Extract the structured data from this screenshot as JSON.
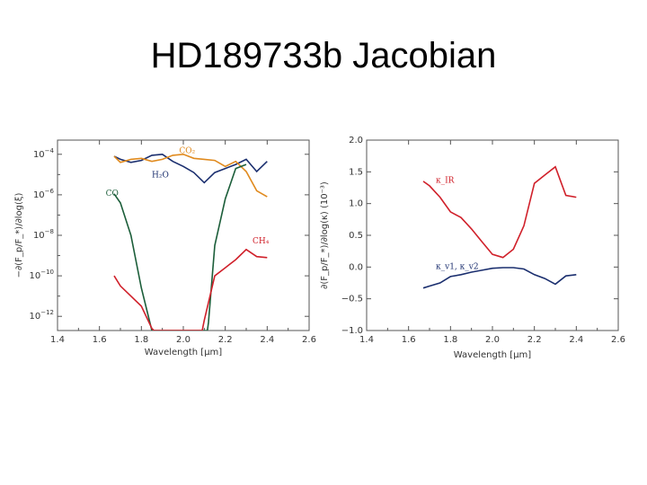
{
  "slide": {
    "title": "HD189733b Jacobian"
  },
  "chart_data": [
    {
      "type": "line",
      "xlabel": "Wavelength [μm]",
      "ylabel": "−∂(F_p/F_*)/∂log(ξ)",
      "xlim": [
        1.4,
        2.6
      ],
      "xticks": [
        "1.4",
        "1.6",
        "1.8",
        "2.0",
        "2.2",
        "2.4",
        "2.6"
      ],
      "y_scale": "log",
      "ylim_exp": [
        -12.7,
        -3.3
      ],
      "yticks": [
        {
          "base": "10",
          "exp": "−4",
          "e": -4
        },
        {
          "base": "10",
          "exp": "−6",
          "e": -6
        },
        {
          "base": "10",
          "exp": "−8",
          "e": -8
        },
        {
          "base": "10",
          "exp": "−10",
          "e": -10
        },
        {
          "base": "10",
          "exp": "−12",
          "e": -12
        }
      ],
      "series": [
        {
          "name": "H₂O",
          "color": "#1a2e6e",
          "label_at": [
            1.85,
            -5.15
          ],
          "x": [
            1.67,
            1.7,
            1.75,
            1.8,
            1.85,
            1.9,
            1.95,
            2.0,
            2.05,
            2.1,
            2.15,
            2.2,
            2.25,
            2.3,
            2.35,
            2.4
          ],
          "y": [
            -4.1,
            -4.25,
            -4.4,
            -4.3,
            -4.05,
            -4.0,
            -4.35,
            -4.6,
            -4.9,
            -5.4,
            -4.9,
            -4.7,
            -4.5,
            -4.25,
            -4.85,
            -4.35
          ]
        },
        {
          "name": "CO₂",
          "color": "#e08a1e",
          "label_at": [
            1.98,
            -3.95
          ],
          "x": [
            1.67,
            1.7,
            1.75,
            1.8,
            1.85,
            1.9,
            1.95,
            2.0,
            2.05,
            2.1,
            2.15,
            2.2,
            2.25,
            2.3,
            2.35,
            2.4
          ],
          "y": [
            -4.1,
            -4.4,
            -4.25,
            -4.2,
            -4.35,
            -4.25,
            -4.05,
            -4.0,
            -4.2,
            -4.25,
            -4.3,
            -4.6,
            -4.35,
            -4.85,
            -5.8,
            -6.1
          ]
        },
        {
          "name": "CO",
          "color": "#1c5e3a",
          "label_at": [
            1.63,
            -6.05
          ],
          "x": [
            1.67,
            1.7,
            1.75,
            1.8,
            1.85,
            1.855,
            2.115,
            2.12,
            2.15,
            2.2,
            2.25,
            2.3
          ],
          "y": [
            -5.95,
            -6.4,
            -8.0,
            -10.6,
            -12.7,
            -12.7,
            -12.7,
            -12.3,
            -8.5,
            -6.2,
            -4.7,
            -4.5
          ]
        },
        {
          "name": "CH₄",
          "color": "#d0202a",
          "label_at": [
            2.33,
            -8.4
          ],
          "x": [
            1.67,
            1.7,
            1.75,
            1.8,
            1.85,
            1.86,
            2.09,
            2.1,
            2.15,
            2.2,
            2.25,
            2.3,
            2.35,
            2.4
          ],
          "y": [
            -10.0,
            -10.5,
            -11.0,
            -11.5,
            -12.6,
            -12.7,
            -12.7,
            -12.2,
            -10.0,
            -9.6,
            -9.2,
            -8.7,
            -9.05,
            -9.1
          ]
        }
      ]
    },
    {
      "type": "line",
      "xlabel": "Wavelength [μm]",
      "ylabel": "∂(F_p/F_*)/∂log(κ) (10⁻³)",
      "xlim": [
        1.4,
        2.6
      ],
      "xticks": [
        "1.4",
        "1.6",
        "1.8",
        "2.0",
        "2.2",
        "2.4",
        "2.6"
      ],
      "ylim": [
        -1.0,
        2.0
      ],
      "yticks": [
        "2.0",
        "1.5",
        "1.0",
        "0.5",
        "0.0",
        "−0.5",
        "−1.0"
      ],
      "series": [
        {
          "name": "κ_IR",
          "color": "#d0202a",
          "label_at": [
            1.73,
            1.33
          ],
          "x": [
            1.67,
            1.7,
            1.75,
            1.8,
            1.85,
            1.9,
            1.95,
            2.0,
            2.05,
            2.1,
            2.15,
            2.2,
            2.25,
            2.3,
            2.35,
            2.4
          ],
          "y": [
            1.35,
            1.28,
            1.1,
            0.87,
            0.78,
            0.6,
            0.4,
            0.2,
            0.15,
            0.28,
            0.65,
            1.32,
            1.45,
            1.58,
            1.13,
            1.1
          ]
        },
        {
          "name": "κ_v1, κ_v2",
          "color": "#1a2e6e",
          "label_at": [
            1.73,
            -0.03
          ],
          "x": [
            1.67,
            1.7,
            1.75,
            1.8,
            1.85,
            1.9,
            1.95,
            2.0,
            2.05,
            2.1,
            2.15,
            2.2,
            2.25,
            2.3,
            2.35,
            2.4
          ],
          "y": [
            -0.33,
            -0.3,
            -0.25,
            -0.15,
            -0.12,
            -0.08,
            -0.05,
            -0.02,
            -0.01,
            -0.01,
            -0.03,
            -0.12,
            -0.18,
            -0.27,
            -0.14,
            -0.12
          ]
        }
      ]
    }
  ]
}
